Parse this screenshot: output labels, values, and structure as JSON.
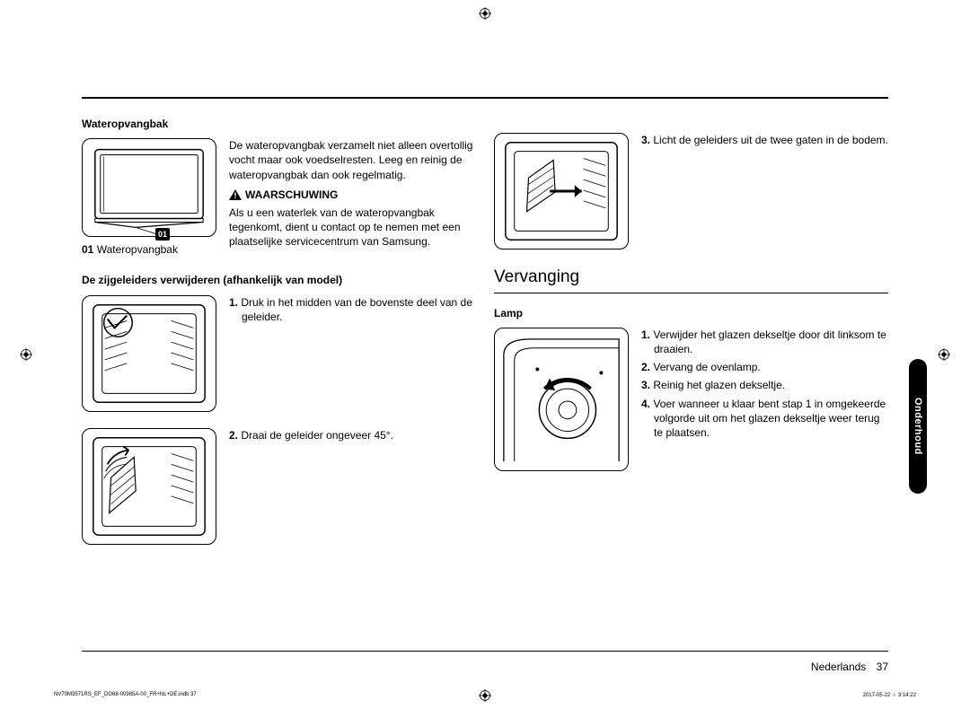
{
  "crop_color": "#000000",
  "side_tab": "Onderhoud",
  "footer_lang": "Nederlands",
  "footer_page": "37",
  "print_left": "NV70M3571RS_EF_DG68-00985A-00_FR+NL+DE.indb   37",
  "print_right": "2017-05-22   ☆ 3:14:22",
  "col1": {
    "h_water": "Wateropvangbak",
    "label01": "01",
    "caption_water_num": "01",
    "caption_water_text": "Wateropvangbak",
    "water_para": "De wateropvangbak verzamelt niet alleen overtollig vocht maar ook voedselresten. Leeg en reinig de wateropvangbak dan ook regelmatig.",
    "warn_label": "WAARSCHUWING",
    "warn_para": "Als u een waterlek van de wateropvangbak tegenkomt, dient u contact op te nemen met een plaatselijke servicecentrum van Samsung.",
    "h_guides": "De zijgeleiders verwijderen (afhankelijk van model)",
    "step1_num": "1.",
    "step1_text": "Druk in het midden van de bovenste deel van de geleider.",
    "step2_num": "2.",
    "step2_text": "Draai de geleider ongeveer 45°."
  },
  "col2": {
    "step3_num": "3.",
    "step3_text": "Licht de geleiders uit de twee gaten in de bodem.",
    "h_section": "Vervanging",
    "h_lamp": "Lamp",
    "lamp_steps": [
      {
        "n": "1.",
        "t": "Verwijder het glazen dekseltje door dit linksom te draaien."
      },
      {
        "n": "2.",
        "t": "Vervang de ovenlamp."
      },
      {
        "n": "3.",
        "t": "Reinig het glazen dekseltje."
      },
      {
        "n": "4.",
        "t": "Voer wanneer u klaar bent stap 1 in omgekeerde volgorde uit om het glazen dekseltje weer terug te plaatsen."
      }
    ]
  }
}
